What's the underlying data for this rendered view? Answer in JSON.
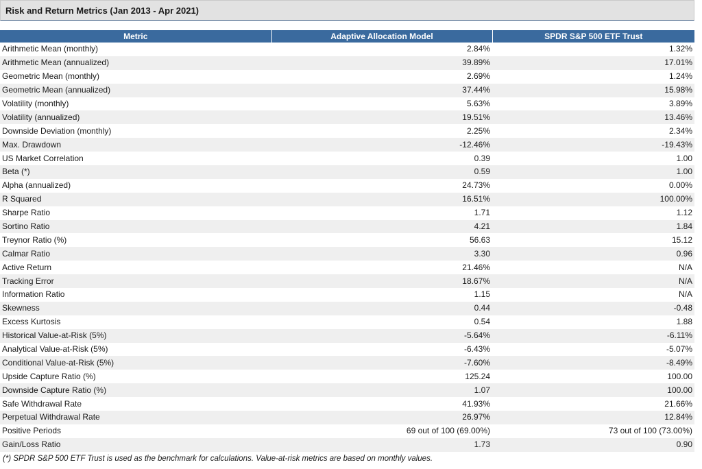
{
  "panel": {
    "title": "Risk and Return Metrics (Jan 2013 - Apr 2021)"
  },
  "table": {
    "headers": [
      "Metric",
      "Adaptive Allocation Model",
      "SPDR S&P 500 ETF Trust"
    ],
    "rows": [
      [
        "Arithmetic Mean (monthly)",
        "2.84%",
        "1.32%"
      ],
      [
        "Arithmetic Mean (annualized)",
        "39.89%",
        "17.01%"
      ],
      [
        "Geometric Mean (monthly)",
        "2.69%",
        "1.24%"
      ],
      [
        "Geometric Mean (annualized)",
        "37.44%",
        "15.98%"
      ],
      [
        "Volatility (monthly)",
        "5.63%",
        "3.89%"
      ],
      [
        "Volatility (annualized)",
        "19.51%",
        "13.46%"
      ],
      [
        "Downside Deviation (monthly)",
        "2.25%",
        "2.34%"
      ],
      [
        "Max. Drawdown",
        "-12.46%",
        "-19.43%"
      ],
      [
        "US Market Correlation",
        "0.39",
        "1.00"
      ],
      [
        "Beta (*)",
        "0.59",
        "1.00"
      ],
      [
        "Alpha (annualized)",
        "24.73%",
        "0.00%"
      ],
      [
        "R Squared",
        "16.51%",
        "100.00%"
      ],
      [
        "Sharpe Ratio",
        "1.71",
        "1.12"
      ],
      [
        "Sortino Ratio",
        "4.21",
        "1.84"
      ],
      [
        "Treynor Ratio (%)",
        "56.63",
        "15.12"
      ],
      [
        "Calmar Ratio",
        "3.30",
        "0.96"
      ],
      [
        "Active Return",
        "21.46%",
        "N/A"
      ],
      [
        "Tracking Error",
        "18.67%",
        "N/A"
      ],
      [
        "Information Ratio",
        "1.15",
        "N/A"
      ],
      [
        "Skewness",
        "0.44",
        "-0.48"
      ],
      [
        "Excess Kurtosis",
        "0.54",
        "1.88"
      ],
      [
        "Historical Value-at-Risk (5%)",
        "-5.64%",
        "-6.11%"
      ],
      [
        "Analytical Value-at-Risk (5%)",
        "-6.43%",
        "-5.07%"
      ],
      [
        "Conditional Value-at-Risk (5%)",
        "-7.60%",
        "-8.49%"
      ],
      [
        "Upside Capture Ratio (%)",
        "125.24",
        "100.00"
      ],
      [
        "Downside Capture Ratio (%)",
        "1.07",
        "100.00"
      ],
      [
        "Safe Withdrawal Rate",
        "41.93%",
        "21.66%"
      ],
      [
        "Perpetual Withdrawal Rate",
        "26.97%",
        "12.84%"
      ],
      [
        "Positive Periods",
        "69 out of 100 (69.00%)",
        "73 out of 100 (73.00%)"
      ],
      [
        "Gain/Loss Ratio",
        "1.73",
        "0.90"
      ]
    ]
  },
  "footnote": "(*) SPDR S&P 500 ETF Trust is used as the benchmark for calculations. Value-at-risk metrics are based on monthly values.",
  "colors": {
    "header_background": "#3a6a9e",
    "panel_background": "#e2e2e2",
    "row_stripe": "#efefef"
  }
}
